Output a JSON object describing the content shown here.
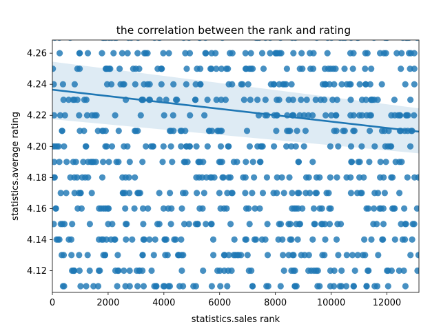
{
  "chart_data": {
    "type": "scatter",
    "title": "the correlation between the rank and rating",
    "xlabel": "statistics.sales rank",
    "ylabel": "statistics.average rating",
    "xlim": [
      0,
      13150
    ],
    "ylim": [
      4.106,
      4.2685
    ],
    "xticks": [
      0,
      2000,
      4000,
      6000,
      8000,
      10000,
      12000
    ],
    "xtick_labels": [
      "0",
      "2000",
      "4000",
      "6000",
      "8000",
      "10000",
      "12000"
    ],
    "yticks": [
      4.12,
      4.14,
      4.16,
      4.18,
      4.2,
      4.22,
      4.24,
      4.26
    ],
    "ytick_labels": [
      "4.12",
      "4.14",
      "4.16",
      "4.18",
      "4.20",
      "4.22",
      "4.24",
      "4.26"
    ],
    "grid": false,
    "legend": false,
    "y_levels": [
      4.11,
      4.12,
      4.13,
      4.14,
      4.15,
      4.16,
      4.17,
      4.18,
      4.19,
      4.2,
      4.21,
      4.22,
      4.23,
      4.24,
      4.25,
      4.26,
      4.27
    ],
    "x_range_of_points": [
      0,
      13150
    ],
    "points_per_level": 48,
    "regression": {
      "x": [
        0,
        13150
      ],
      "y": [
        4.2365,
        4.2095
      ],
      "ci_upper": [
        4.2545,
        4.2245
      ],
      "ci_lower": [
        4.2175,
        4.1955
      ]
    },
    "colors": {
      "points": "#1f77b4",
      "line": "#1f77b4",
      "ci_band": "#1f77b4"
    }
  }
}
